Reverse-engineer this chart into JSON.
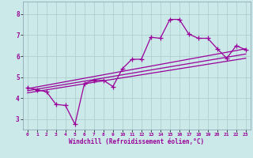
{
  "xlabel": "Windchill (Refroidissement éolien,°C)",
  "bg_color": "#cce9e9",
  "grid_color": "#aacccc",
  "line_color": "#990099",
  "xlim": [
    -0.5,
    23.5
  ],
  "ylim": [
    2.5,
    8.6
  ],
  "xticks": [
    0,
    1,
    2,
    3,
    4,
    5,
    6,
    7,
    8,
    9,
    10,
    11,
    12,
    13,
    14,
    15,
    16,
    17,
    18,
    19,
    20,
    21,
    22,
    23
  ],
  "yticks": [
    3,
    4,
    5,
    6,
    7,
    8
  ],
  "data_x": [
    0,
    1,
    2,
    3,
    4,
    5,
    6,
    7,
    8,
    9,
    10,
    11,
    12,
    13,
    14,
    15,
    16,
    17,
    18,
    19,
    20,
    21,
    22,
    23
  ],
  "data_y": [
    4.5,
    4.4,
    4.3,
    3.7,
    3.65,
    2.75,
    4.7,
    4.85,
    4.85,
    4.55,
    5.4,
    5.85,
    5.85,
    6.9,
    6.85,
    7.75,
    7.75,
    7.05,
    6.85,
    6.85,
    6.35,
    5.9,
    6.5,
    6.3
  ],
  "trend1_x": [
    0,
    23
  ],
  "trend1_y": [
    4.45,
    6.35
  ],
  "trend2_x": [
    0,
    23
  ],
  "trend2_y": [
    4.35,
    6.1
  ],
  "trend3_x": [
    0,
    23
  ],
  "trend3_y": [
    4.25,
    5.9
  ]
}
